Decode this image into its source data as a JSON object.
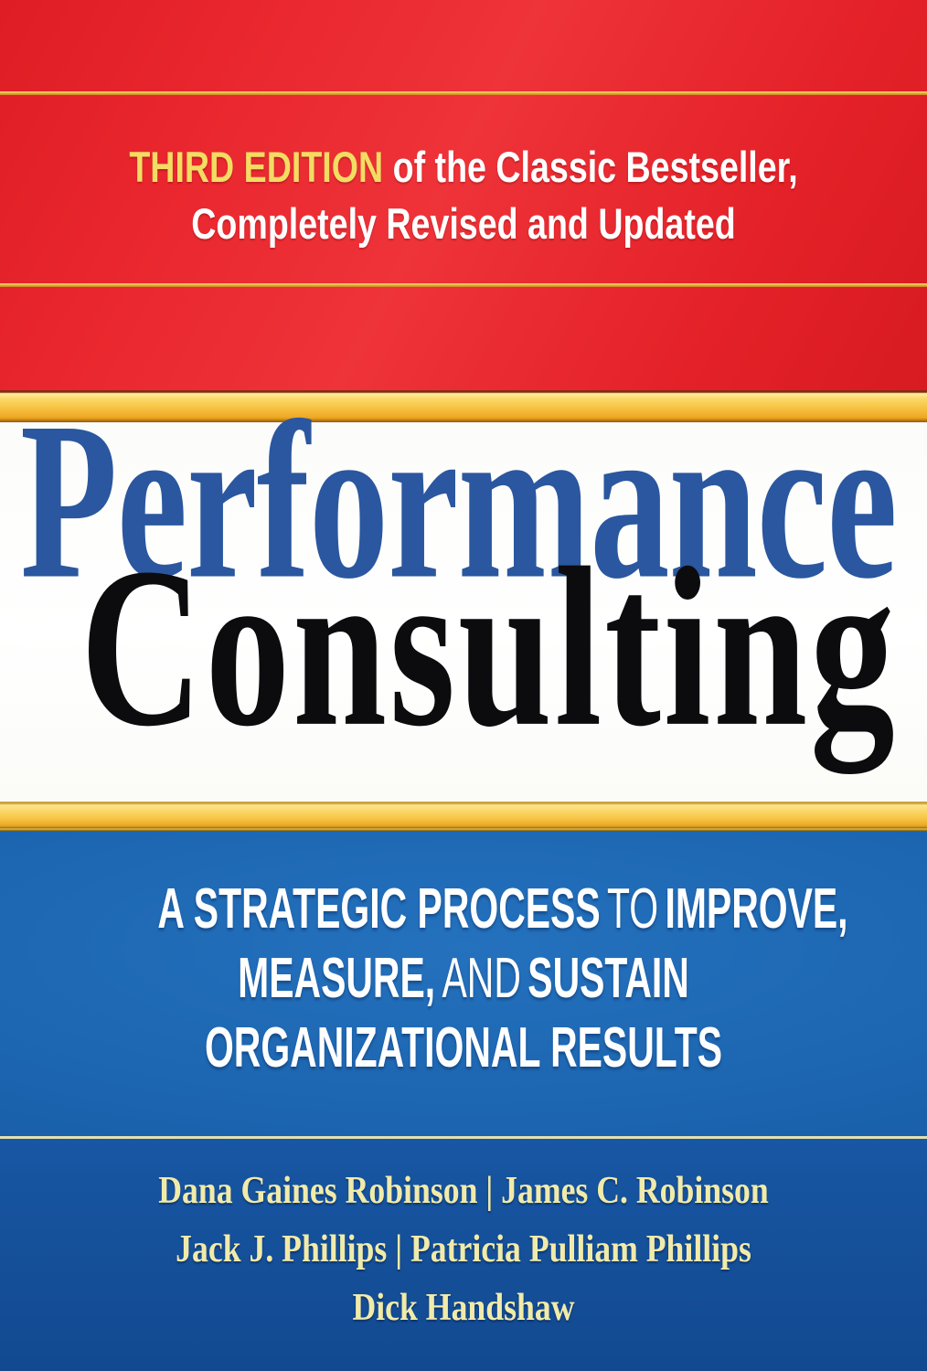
{
  "cover": {
    "type": "book-cover",
    "tagline": {
      "highlight": "THIRD EDITION",
      "line1_rest": " of the Classic Bestseller,",
      "line2": "Completely Revised and Updated"
    },
    "title": {
      "word1": "Performance",
      "word2": "Consulting"
    },
    "subtitle": {
      "l1_bold1": "A STRATEGIC PROCESS",
      "l1_light": "TO",
      "l1_bold2": "IMPROVE,",
      "l2_bold1": "MEASURE,",
      "l2_light": "AND",
      "l2_bold2": "SUSTAIN",
      "l3_bold": "ORGANIZATIONAL RESULTS"
    },
    "authors": {
      "line1": "Dana Gaines Robinson | James C. Robinson",
      "line2": "Jack J. Phillips | Patricia Pulliam Phillips",
      "line3": "Dick Handshaw"
    },
    "colors": {
      "red": "#e8232b",
      "gold": "#f6c64a",
      "title_blue": "#2a579f",
      "title_black": "#0c0c0e",
      "panel_blue": "#1b63ae",
      "author_panel_blue": "#15509a",
      "highlight_yellow": "#f3dc62",
      "author_cream": "#f1ebaa"
    }
  }
}
